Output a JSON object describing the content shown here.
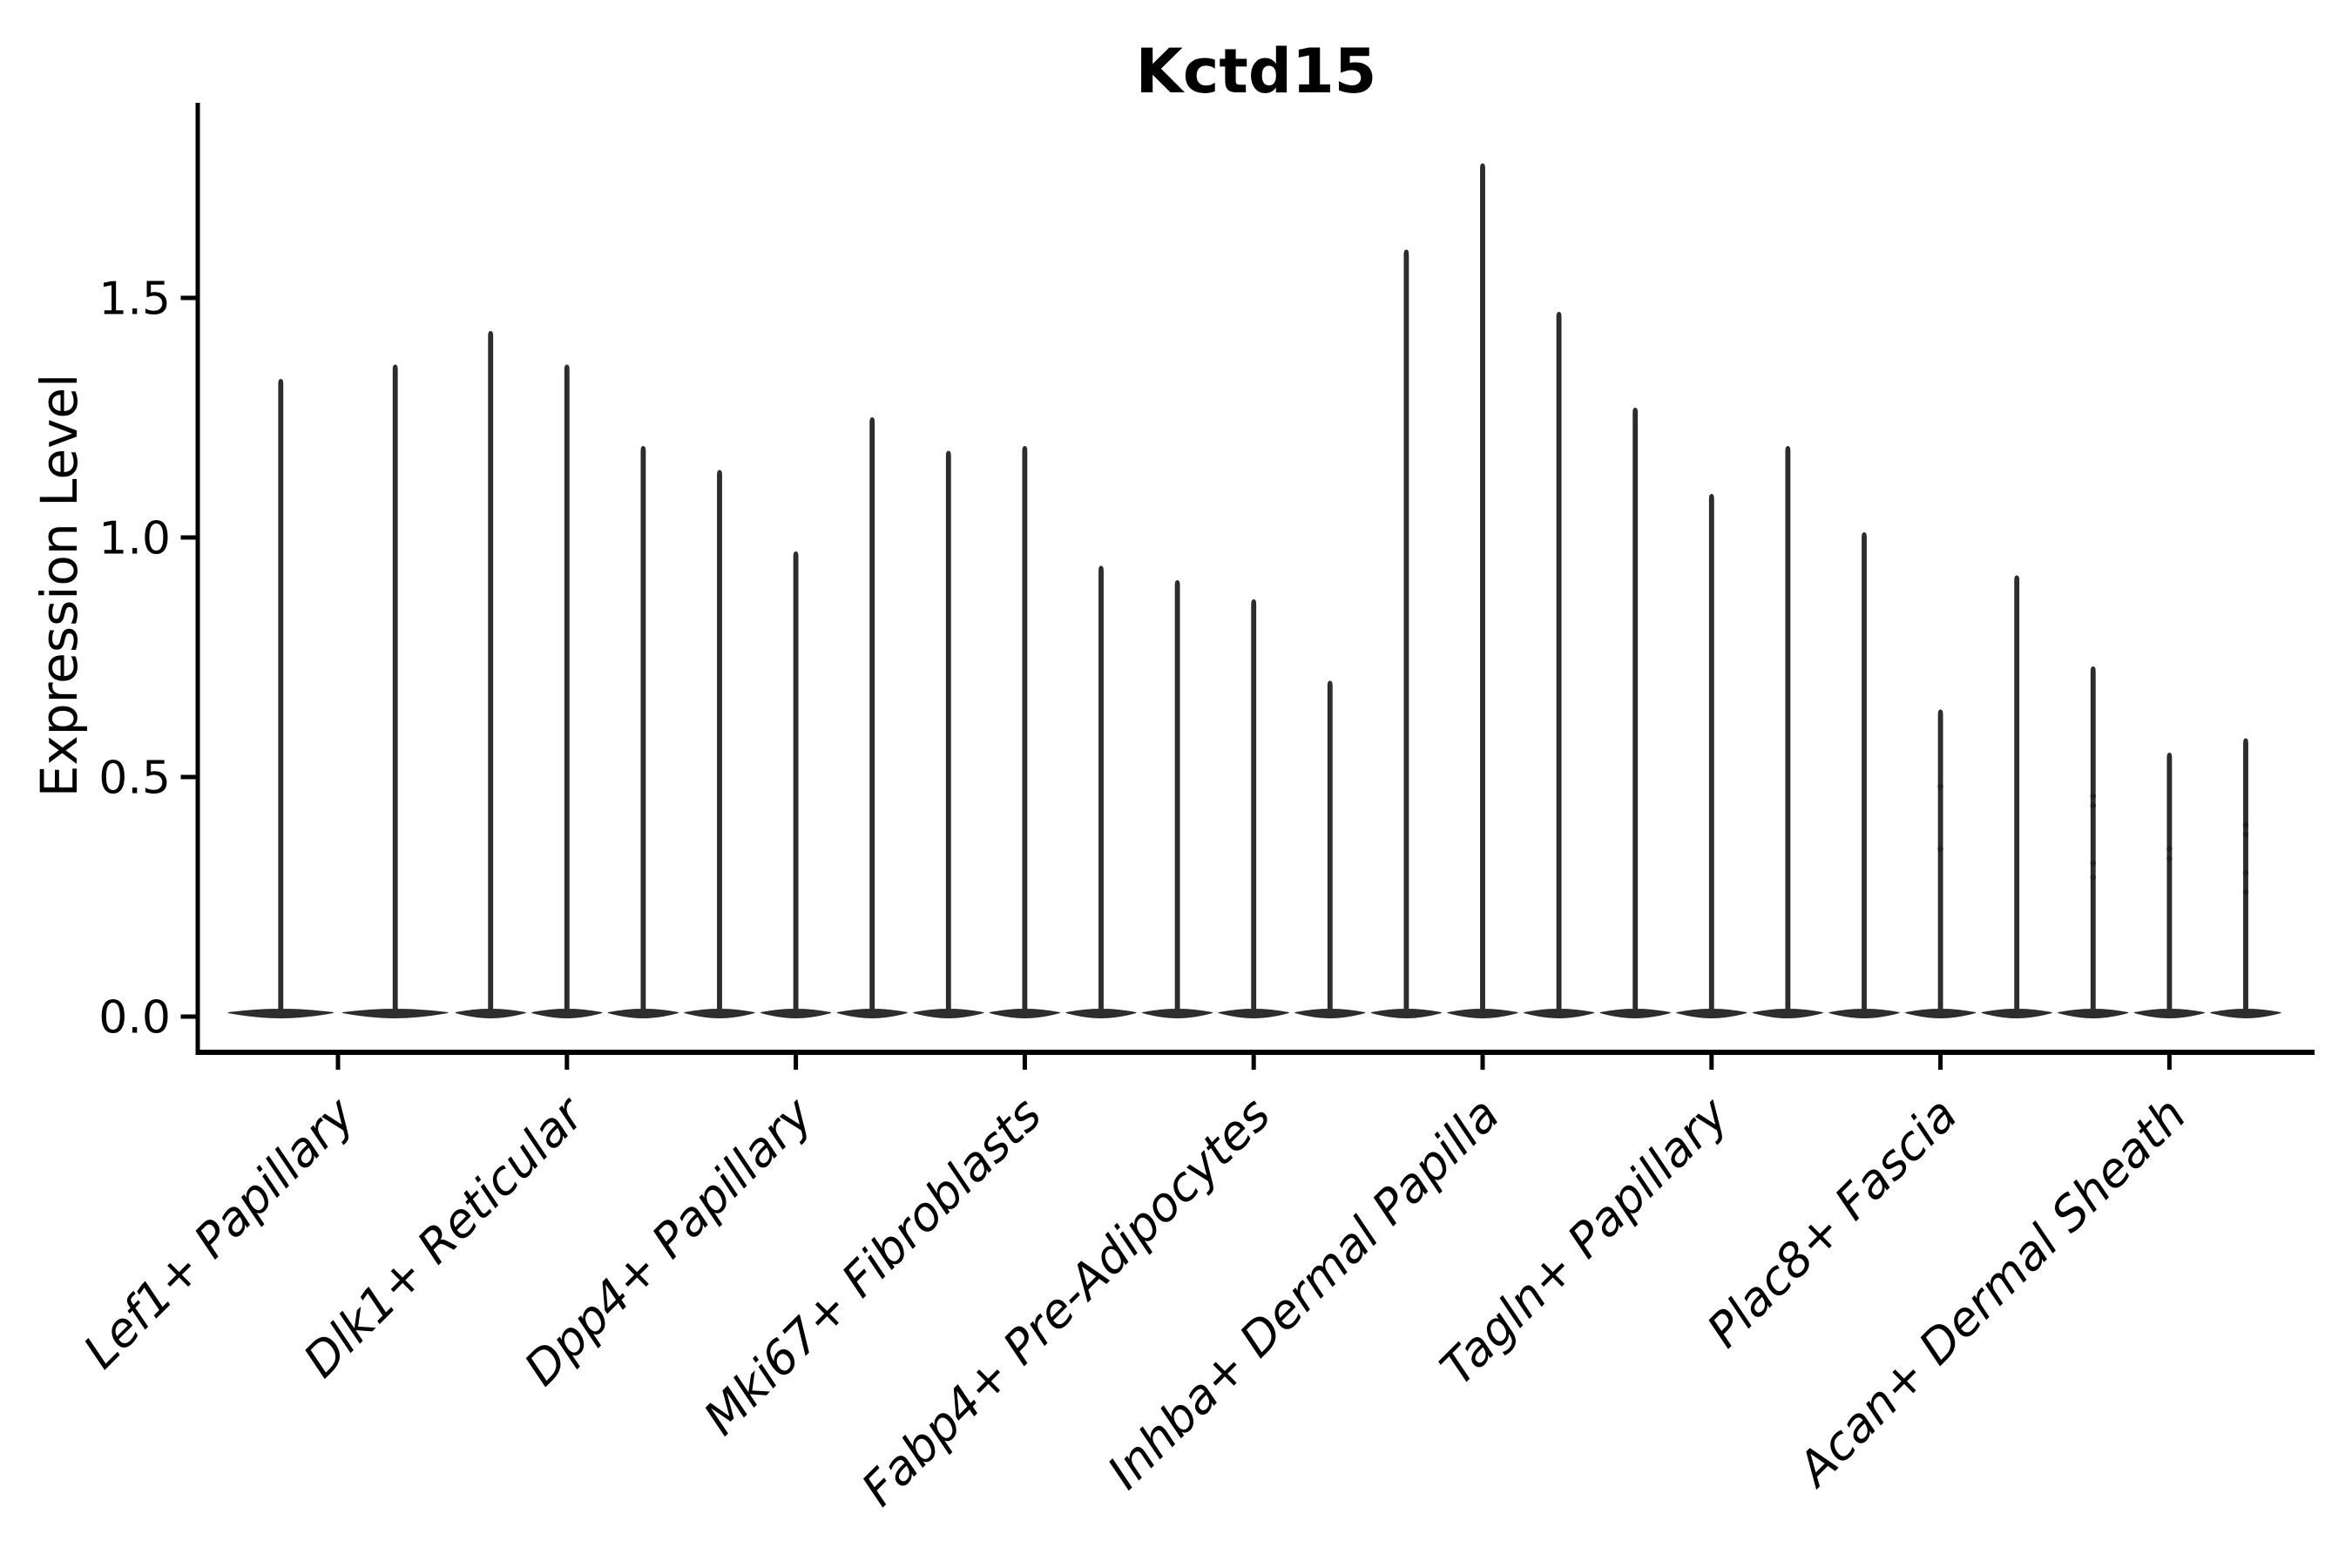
{
  "chart_data": {
    "type": "violin",
    "title": "Kctd15",
    "ylabel": "Expression Level",
    "xlabel": "",
    "grid": false,
    "legend": "none",
    "background_color": "#ffffff",
    "axis_color": "#000000",
    "violin_fill": "#2e2e2e",
    "violin_edge": "#262626",
    "point_color": "#1f1f1f",
    "ylim": [
      -0.08,
      1.91
    ],
    "yticks": [
      {
        "value": 0.0,
        "label": "0.0"
      },
      {
        "value": 0.5,
        "label": "0.5"
      },
      {
        "value": 1.0,
        "label": "1.0"
      },
      {
        "value": 1.5,
        "label": "1.5"
      }
    ],
    "categories": [
      "Lef1+ Papillary",
      "Dlk1+ Reticular",
      "Dpp4+ Papillary",
      "Mki67+ Fibroblasts",
      "Fabp4+ Pre-Adipocytes",
      "Inhba+ Dermal Papilla",
      "Tagln+ Papillary",
      "Plac8+ Fascia",
      "Acan+ Dermal Sheath"
    ],
    "groups": [
      {
        "category": "Lef1+ Papillary",
        "violins": [
          {
            "peak": 1.33,
            "points": []
          },
          {
            "peak": 1.36,
            "points": []
          }
        ]
      },
      {
        "category": "Dlk1+ Reticular",
        "violins": [
          {
            "peak": 1.43,
            "points": []
          },
          {
            "peak": 1.36,
            "points": []
          },
          {
            "peak": 1.19,
            "points": []
          }
        ]
      },
      {
        "category": "Dpp4+ Papillary",
        "violins": [
          {
            "peak": 1.14,
            "points": []
          },
          {
            "peak": 0.97,
            "points": []
          },
          {
            "peak": 1.25,
            "points": []
          }
        ]
      },
      {
        "category": "Mki67+ Fibroblasts",
        "violins": [
          {
            "peak": 1.18,
            "points": []
          },
          {
            "peak": 1.19,
            "points": []
          },
          {
            "peak": 0.94,
            "points": []
          }
        ]
      },
      {
        "category": "Fabp4+ Pre-Adipocytes",
        "violins": [
          {
            "peak": 0.91,
            "points": []
          },
          {
            "peak": 0.87,
            "points": []
          },
          {
            "peak": 0.7,
            "points": []
          }
        ]
      },
      {
        "category": "Inhba+ Dermal Papilla",
        "violins": [
          {
            "peak": 1.6,
            "points": []
          },
          {
            "peak": 1.78,
            "points": []
          },
          {
            "peak": 1.47,
            "points": []
          }
        ]
      },
      {
        "category": "Tagln+ Papillary",
        "violins": [
          {
            "peak": 1.27,
            "points": []
          },
          {
            "peak": 1.09,
            "points": []
          },
          {
            "peak": 1.19,
            "points": []
          }
        ]
      },
      {
        "category": "Plac8+ Fascia",
        "violins": [
          {
            "peak": 1.01,
            "points": []
          },
          {
            "peak": 0.64,
            "points": [
              0.48,
              0.35
            ]
          },
          {
            "peak": 0.92,
            "points": []
          }
        ]
      },
      {
        "category": "Acan+ Dermal Sheath",
        "violins": [
          {
            "peak": 0.73,
            "points": [
              0.46,
              0.44,
              0.32,
              0.29
            ]
          },
          {
            "peak": 0.55,
            "points": [
              0.35,
              0.33
            ]
          },
          {
            "peak": 0.58,
            "points": [
              0.4,
              0.38,
              0.3,
              0.26
            ]
          }
        ]
      }
    ]
  }
}
